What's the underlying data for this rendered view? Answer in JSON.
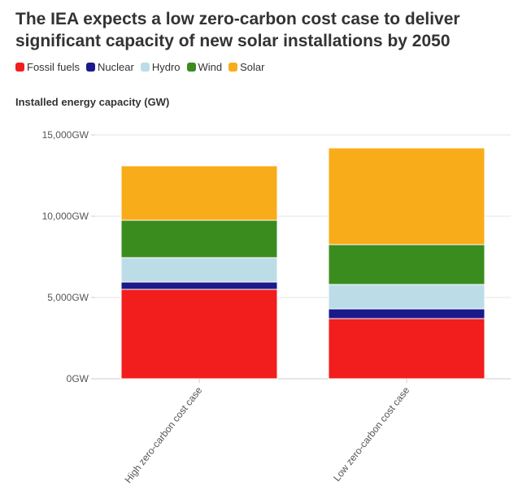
{
  "title": "The IEA expects a low zero-carbon cost case to deliver significant capacity of new solar installations by 2050",
  "chart_data": {
    "type": "bar",
    "stacked": true,
    "title": "The IEA expects a low zero-carbon cost case to deliver significant capacity of new solar installations by 2050",
    "ylabel": "Installed energy capacity (GW)",
    "xlabel": "",
    "categories": [
      "High zero-carbon cost case",
      "Low zero-carbon cost case"
    ],
    "ylim": [
      0,
      16000
    ],
    "yticks": [
      0,
      5000,
      10000,
      15000
    ],
    "ytick_labels": [
      "0GW",
      "5,000GW",
      "10,000GW",
      "15,000GW"
    ],
    "grid": true,
    "legend_position": "top-left",
    "series": [
      {
        "name": "Fossil fuels",
        "color": "#f21d1d",
        "values": [
          5500,
          3700
        ]
      },
      {
        "name": "Nuclear",
        "color": "#1a1a8c",
        "values": [
          450,
          600
        ]
      },
      {
        "name": "Hydro",
        "color": "#bcdde8",
        "values": [
          1500,
          1500
        ]
      },
      {
        "name": "Wind",
        "color": "#3a8c1e",
        "values": [
          2300,
          2450
        ]
      },
      {
        "name": "Solar",
        "color": "#f9ac1a",
        "values": [
          3350,
          5950
        ]
      }
    ]
  }
}
